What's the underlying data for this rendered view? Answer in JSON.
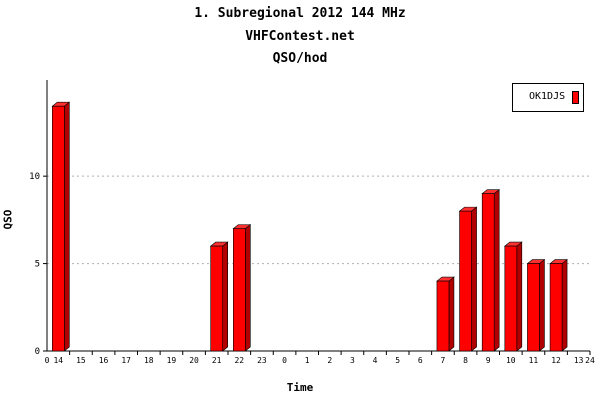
{
  "chart_data": {
    "type": "bar",
    "title": "1. Subregional 2012 144 MHz",
    "subtitle": "VHFContest.net",
    "subtitle2": "QSO/hod",
    "xlabel": "Time",
    "ylabel": "QSO",
    "x_axis_edge_labels": [
      "0",
      "24"
    ],
    "categories": [
      "14",
      "15",
      "16",
      "17",
      "18",
      "19",
      "20",
      "21",
      "22",
      "23",
      "0",
      "1",
      "2",
      "3",
      "4",
      "5",
      "6",
      "7",
      "8",
      "9",
      "10",
      "11",
      "12",
      "13"
    ],
    "series": [
      {
        "name": "OK1DJS",
        "color": "#ff0000",
        "values": [
          14,
          0,
          0,
          0,
          0,
          0,
          0,
          6,
          7,
          0,
          0,
          0,
          0,
          0,
          0,
          0,
          0,
          4,
          8,
          9,
          6,
          5,
          5,
          0
        ]
      }
    ],
    "y_ticks": [
      0,
      5,
      10
    ],
    "ylim": [
      0,
      15.5
    ],
    "grid": true,
    "legend_position": "top-right"
  }
}
